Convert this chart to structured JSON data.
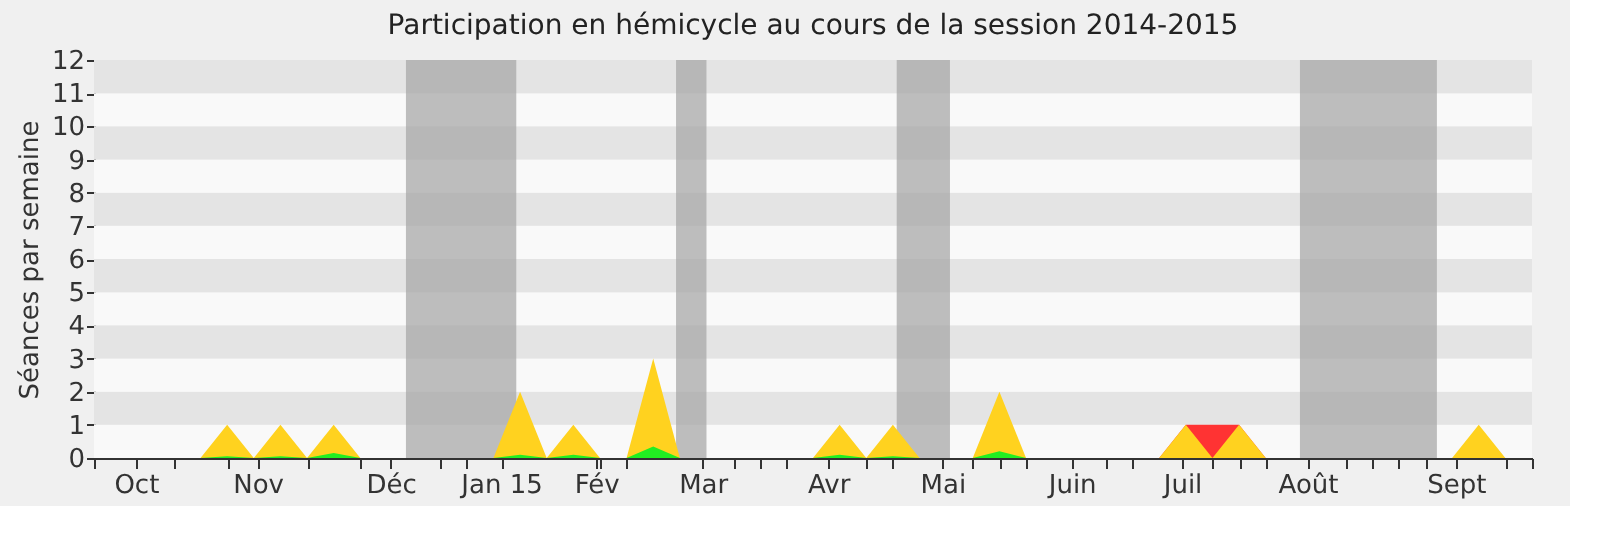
{
  "chart_data": {
    "type": "area",
    "title": "Participation en hémicycle au cours de la session 2014-2015",
    "ylabel": "Séances par semaine",
    "xlim": [
      "2014-09-22",
      "2015-10-05"
    ],
    "ylim": [
      0,
      12
    ],
    "yticks": [
      0,
      1,
      2,
      3,
      4,
      5,
      6,
      7,
      8,
      9,
      10,
      11,
      12
    ],
    "xticks": [
      {
        "value": "2014-10-03",
        "label": "Oct"
      },
      {
        "value": "2014-11-04",
        "label": "Nov"
      },
      {
        "value": "2014-12-09",
        "label": "Déc"
      },
      {
        "value": "2015-01-07",
        "label": "Jan 15"
      },
      {
        "value": "2015-02-01",
        "label": "Fév"
      },
      {
        "value": "2015-03-01",
        "label": "Mar"
      },
      {
        "value": "2015-04-03",
        "label": "Avr"
      },
      {
        "value": "2015-05-03",
        "label": "Mai"
      },
      {
        "value": "2015-06-06",
        "label": "Juin"
      },
      {
        "value": "2015-07-05",
        "label": "Juil"
      },
      {
        "value": "2015-08-07",
        "label": "Août"
      },
      {
        "value": "2015-09-15",
        "label": "Sept"
      },
      {
        "value": "2014-09-22",
        "label": null
      },
      {
        "value": "2014-10-13",
        "label": null
      },
      {
        "value": "2014-10-27",
        "label": null
      },
      {
        "value": "2014-11-17",
        "label": null
      },
      {
        "value": "2014-12-01",
        "label": null
      },
      {
        "value": "2014-12-22",
        "label": null
      },
      {
        "value": "2014-12-29",
        "label": null
      },
      {
        "value": "2015-02-02",
        "label": null
      },
      {
        "value": "2015-02-09",
        "label": null
      },
      {
        "value": "2015-03-09",
        "label": null
      },
      {
        "value": "2015-03-16",
        "label": null
      },
      {
        "value": "2015-03-23",
        "label": null
      },
      {
        "value": "2015-04-13",
        "label": null
      },
      {
        "value": "2015-04-20",
        "label": null
      },
      {
        "value": "2015-05-11",
        "label": null
      },
      {
        "value": "2015-05-18",
        "label": null
      },
      {
        "value": "2015-05-25",
        "label": null
      },
      {
        "value": "2015-06-15",
        "label": null
      },
      {
        "value": "2015-06-22",
        "label": null
      },
      {
        "value": "2015-07-13",
        "label": null
      },
      {
        "value": "2015-07-20",
        "label": null
      },
      {
        "value": "2015-07-27",
        "label": null
      },
      {
        "value": "2015-08-17",
        "label": null
      },
      {
        "value": "2015-08-24",
        "label": null
      },
      {
        "value": "2015-08-31",
        "label": null
      },
      {
        "value": "2015-09-07",
        "label": null
      },
      {
        "value": "2015-09-28",
        "label": null
      },
      {
        "value": "2015-10-05",
        "label": null
      }
    ],
    "bands": [
      {
        "axis": "x",
        "from": "2014-12-13",
        "to": "2015-01-11",
        "color": "#a8a8a8"
      },
      {
        "axis": "x",
        "from": "2015-02-22",
        "to": "2015-03-02",
        "color": "#a8a8a8"
      },
      {
        "axis": "x",
        "from": "2015-04-21",
        "to": "2015-05-05",
        "color": "#a8a8a8"
      },
      {
        "axis": "x",
        "from": "2015-08-05",
        "to": "2015-09-10",
        "color": "#a8a8a8"
      }
    ],
    "series": [
      {
        "color": "#ff3333",
        "x": [
          "2015-06-29",
          "2015-07-06",
          "2015-07-13",
          "2015-07-20",
          "2015-07-27"
        ],
        "values": [
          0,
          1,
          1,
          1,
          0
        ]
      },
      {
        "color": "#ffd21f",
        "x": [
          "2014-09-22",
          "2014-10-20",
          "2014-10-27",
          "2014-11-03",
          "2014-11-10",
          "2014-11-17",
          "2014-11-24",
          "2014-12-01",
          "2015-01-05",
          "2015-01-12",
          "2015-01-19",
          "2015-01-26",
          "2015-02-02",
          "2015-02-09",
          "2015-02-16",
          "2015-02-23",
          "2015-03-30",
          "2015-04-06",
          "2015-04-13",
          "2015-04-20",
          "2015-04-27",
          "2015-05-11",
          "2015-05-18",
          "2015-05-25",
          "2015-06-29",
          "2015-07-06",
          "2015-07-13",
          "2015-07-20",
          "2015-07-27",
          "2015-09-14",
          "2015-09-21",
          "2015-09-28",
          "2015-10-05"
        ],
        "values": [
          0,
          0,
          1,
          0,
          1,
          0,
          1,
          0,
          0,
          2,
          0,
          1,
          0,
          0,
          3,
          0,
          0,
          1,
          0,
          1,
          0,
          0,
          2,
          0,
          0,
          1,
          0,
          1,
          0,
          0,
          1,
          0,
          0
        ]
      },
      {
        "color": "#22ee22",
        "x": [
          "2014-10-20",
          "2014-10-27",
          "2014-11-03",
          "2014-11-10",
          "2014-11-17",
          "2014-11-24",
          "2014-12-01",
          "2015-01-05",
          "2015-01-12",
          "2015-01-19",
          "2015-01-26",
          "2015-02-02",
          "2015-02-09",
          "2015-02-16",
          "2015-02-23",
          "2015-03-30",
          "2015-04-06",
          "2015-04-13",
          "2015-04-20",
          "2015-04-27",
          "2015-05-11",
          "2015-05-18",
          "2015-05-25"
        ],
        "values": [
          0,
          0.05,
          0,
          0.05,
          0,
          0.15,
          0,
          0,
          0.1,
          0,
          0.1,
          0,
          0,
          0.35,
          0,
          0,
          0.1,
          0,
          0.05,
          0,
          0,
          0.2,
          0
        ]
      }
    ]
  }
}
